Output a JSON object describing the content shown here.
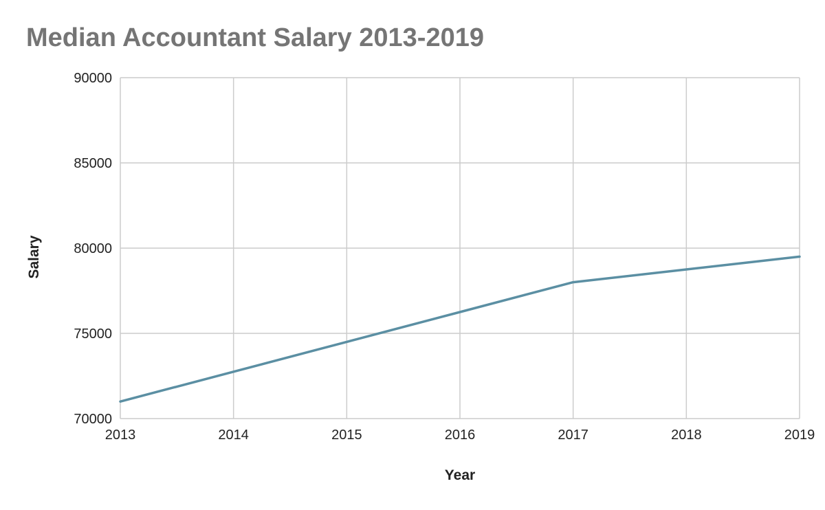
{
  "chart_data": {
    "type": "line",
    "title": "Median Accountant Salary 2013-2019",
    "xlabel": "Year",
    "ylabel": "Salary",
    "x": [
      "2013",
      "2014",
      "2015",
      "2016",
      "2017",
      "2018",
      "2019"
    ],
    "series": [
      {
        "values": [
          71000,
          72750,
          74500,
          76250,
          78000,
          78750,
          79500
        ]
      }
    ],
    "ylim": [
      70000,
      90000
    ],
    "yticks": [
      "70000",
      "75000",
      "80000",
      "85000",
      "90000"
    ],
    "grid": true,
    "line_color": "#5b8fa3",
    "grid_color": "#cccccc"
  }
}
